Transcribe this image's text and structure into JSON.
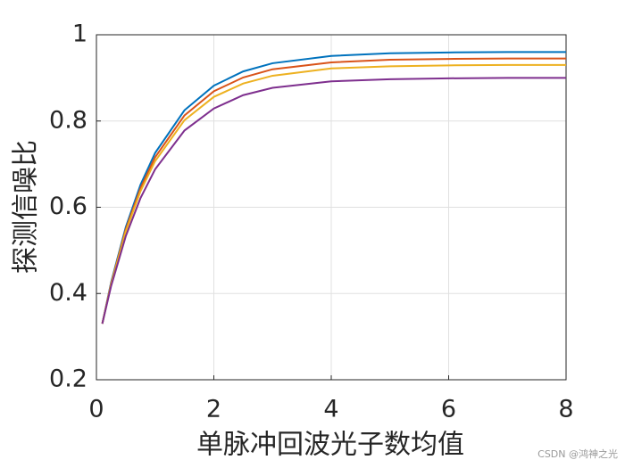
{
  "chart_data": {
    "type": "line",
    "xlabel": "单脉冲回波光子数均值",
    "ylabel": "探测信噪比",
    "x": [
      0.1,
      0.25,
      0.5,
      0.75,
      1,
      1.5,
      2,
      2.5,
      3,
      4,
      5,
      6,
      7,
      8
    ],
    "series": [
      {
        "color": "#0072BD",
        "values": [
          0.33,
          0.426,
          0.554,
          0.652,
          0.726,
          0.825,
          0.882,
          0.915,
          0.934,
          0.951,
          0.957,
          0.959,
          0.96,
          0.96
        ]
      },
      {
        "color": "#D95319",
        "values": [
          0.33,
          0.423,
          0.549,
          0.644,
          0.716,
          0.813,
          0.869,
          0.901,
          0.92,
          0.936,
          0.942,
          0.944,
          0.945,
          0.945
        ]
      },
      {
        "color": "#EDB120",
        "values": [
          0.33,
          0.421,
          0.544,
          0.637,
          0.707,
          0.802,
          0.856,
          0.887,
          0.905,
          0.922,
          0.927,
          0.929,
          0.93,
          0.93
        ]
      },
      {
        "color": "#7E2F8E",
        "values": [
          0.33,
          0.417,
          0.533,
          0.621,
          0.688,
          0.778,
          0.829,
          0.86,
          0.877,
          0.892,
          0.897,
          0.899,
          0.9,
          0.9
        ]
      }
    ],
    "xlim": [
      0,
      8
    ],
    "xticks": [
      0,
      2,
      4,
      6,
      8
    ],
    "ylim": [
      0.2,
      1
    ],
    "yticks": [
      0.2,
      0.4,
      0.6,
      0.8,
      1
    ],
    "grid": true,
    "watermark": "CSDN @鸿神之光"
  }
}
